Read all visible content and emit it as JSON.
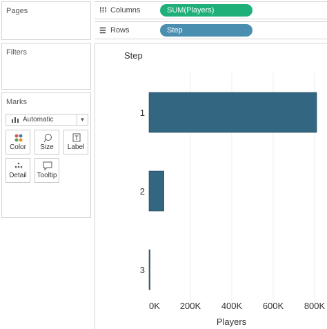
{
  "panes": {
    "pages_title": "Pages",
    "filters_title": "Filters",
    "marks_title": "Marks",
    "mark_type": "Automatic",
    "mark_buttons": [
      {
        "label": "Color",
        "icon": "color-dots-icon"
      },
      {
        "label": "Size",
        "icon": "size-lasso-icon"
      },
      {
        "label": "Label",
        "icon": "label-text-icon"
      },
      {
        "label": "Detail",
        "icon": "detail-dots-icon"
      },
      {
        "label": "Tooltip",
        "icon": "tooltip-bubble-icon"
      }
    ]
  },
  "shelves": {
    "columns_label": "Columns",
    "columns_pill": "SUM(Players)",
    "rows_label": "Rows",
    "rows_pill": "Step"
  },
  "colors": {
    "bar": "#336681",
    "columns_pill": "#1fb07a",
    "rows_pill": "#4b8fb0",
    "gridline": "#eeeeee"
  },
  "chart_data": {
    "type": "bar",
    "orientation": "horizontal",
    "categories": [
      "1",
      "2",
      "3"
    ],
    "values": [
      810000,
      72000,
      5000
    ],
    "row_header": "Step",
    "xlabel": "Players",
    "xlim": [
      0,
      810000
    ],
    "xticks": [
      0,
      200000,
      400000,
      600000,
      800000
    ],
    "xtick_labels": [
      "0K",
      "200K",
      "400K",
      "600K",
      "800K"
    ],
    "grid": true
  }
}
